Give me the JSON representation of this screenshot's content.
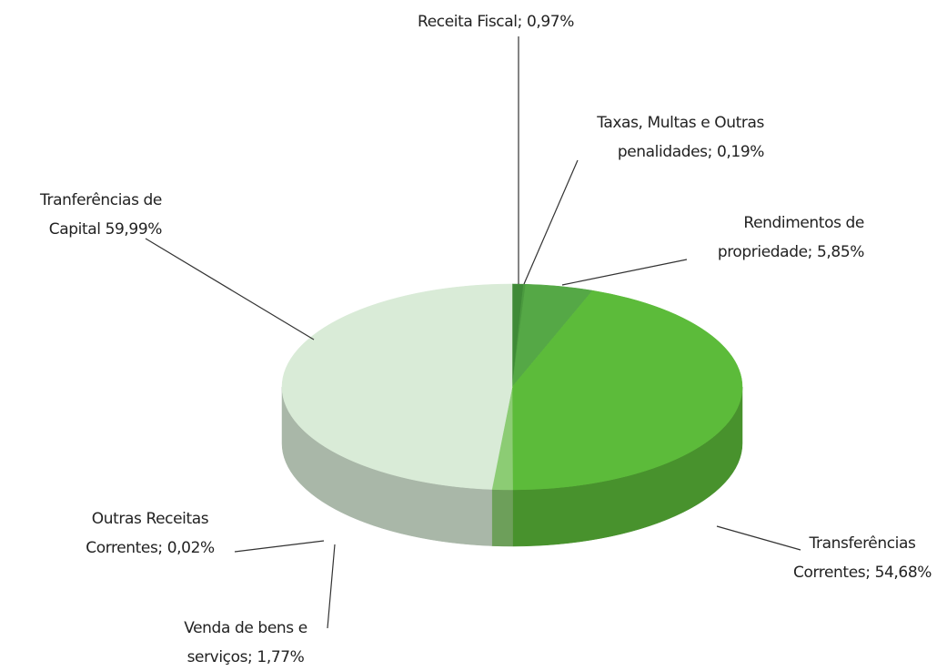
{
  "chart_data": {
    "type": "pie",
    "categories": [
      "Receita Fiscal;",
      "Taxas, Multas e Outras penalidades;",
      "Rendimentos de propriedade;",
      "Transferências Correntes;",
      "Venda de bens e serviços;",
      "Outras Receitas Correntes;",
      "Tranferências de Capital"
    ],
    "values": [
      0.97,
      0.19,
      5.85,
      54.68,
      1.77,
      0.02,
      59.99
    ],
    "value_labels": [
      "0,97%",
      "0,19%",
      "5,85%",
      "54,68%",
      "1,77%",
      "0,02%",
      "59,99%"
    ],
    "colors": [
      "#3f8a37",
      "#4b9a3f",
      "#55a846",
      "#5cbb3a",
      "#8ccc74",
      "#b3dba8",
      "#d9ebd7"
    ]
  }
}
